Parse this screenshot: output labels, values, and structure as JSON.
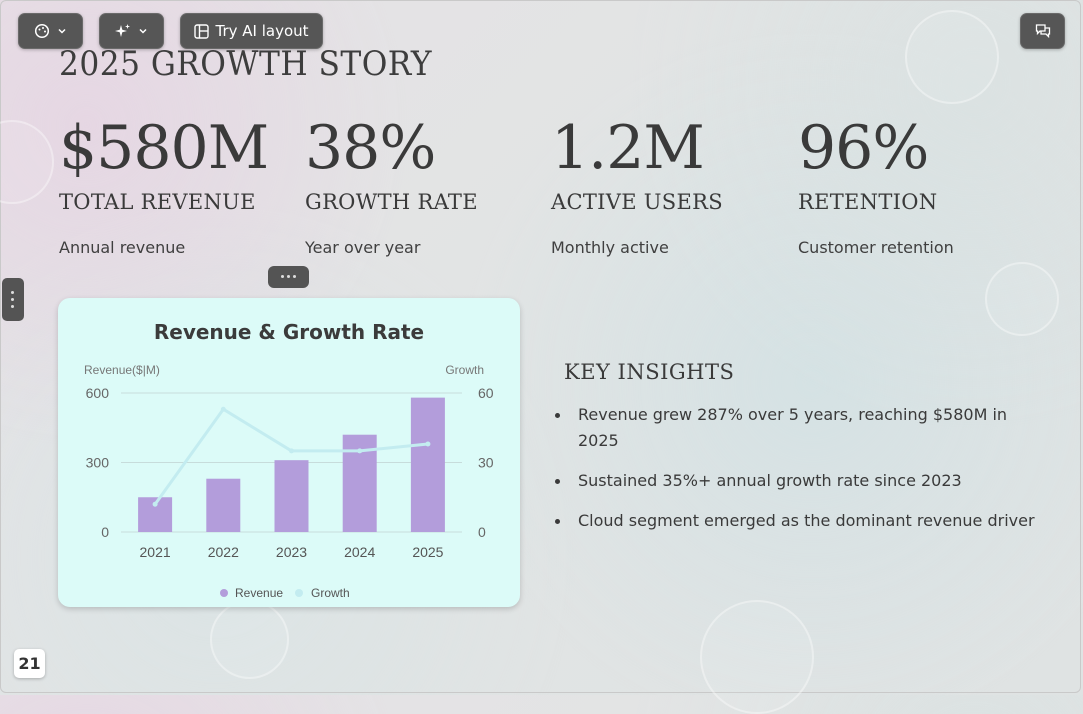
{
  "toolbar": {
    "try_ai_label": "Try AI layout"
  },
  "slide": {
    "title": "2025 GROWTH STORY",
    "page_number": "21"
  },
  "stats": [
    {
      "value": "$580M",
      "label": "TOTAL REVENUE",
      "desc": "Annual revenue"
    },
    {
      "value": "38%",
      "label": "GROWTH RATE",
      "desc": "Year over year"
    },
    {
      "value": "1.2M",
      "label": "ACTIVE USERS",
      "desc": "Monthly active"
    },
    {
      "value": "96%",
      "label": "RETENTION",
      "desc": "Customer retention"
    }
  ],
  "insights": {
    "heading": "KEY INSIGHTS",
    "items": [
      "Revenue grew 287% over 5 years, reaching $580M in 2025",
      "Sustained 35%+ annual growth rate since 2023",
      "Cloud segment emerged as the dominant revenue driver"
    ]
  },
  "colors": {
    "bar": "#b39ddb",
    "line": "#c3ecf0",
    "card": "#dcfbf8",
    "toolbar": "#565656"
  },
  "icons": {
    "theme": "palette-icon",
    "ai": "sparkle-icon",
    "layout": "layout-icon",
    "comments": "comments-icon"
  },
  "chart_data": {
    "type": "bar",
    "title": "Revenue & Growth Rate",
    "categories": [
      "2021",
      "2022",
      "2023",
      "2024",
      "2025"
    ],
    "series": [
      {
        "name": "Revenue",
        "type": "bar",
        "axis": "left",
        "values": [
          150,
          230,
          310,
          420,
          580
        ]
      },
      {
        "name": "Growth",
        "type": "line",
        "axis": "right",
        "values": [
          12,
          53,
          35,
          35,
          38
        ]
      }
    ],
    "ylabel_left": "Revenue($|M)",
    "ylabel_right": "Growth",
    "ylim_left": [
      0,
      600
    ],
    "ylim_right": [
      0,
      60
    ],
    "yticks_left": [
      "0",
      "300",
      "600"
    ],
    "yticks_right": [
      "0",
      "30",
      "60"
    ],
    "grid": true,
    "legend": "bottom"
  }
}
